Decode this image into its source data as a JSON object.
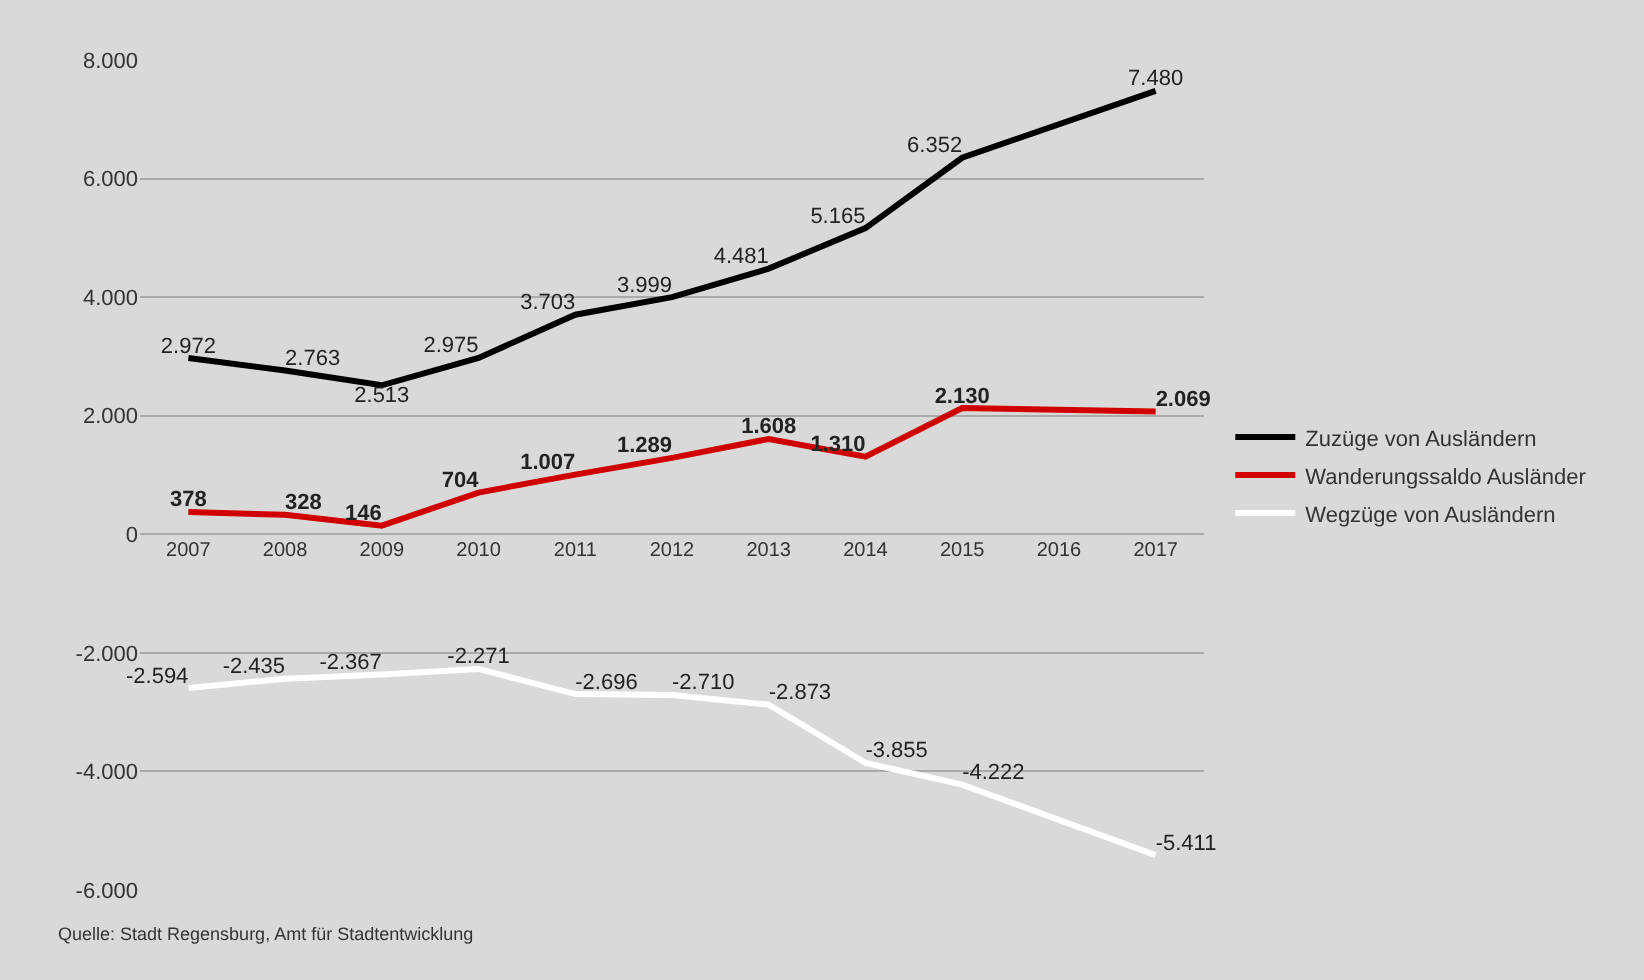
{
  "chart_data": {
    "type": "line",
    "categories": [
      "2007",
      "2008",
      "2009",
      "2010",
      "2011",
      "2012",
      "2013",
      "2014",
      "2015",
      "2016",
      "2017"
    ],
    "series": [
      {
        "name": "Zuzüge von Ausländern",
        "color": "#000000",
        "values": [
          2972,
          2763,
          2513,
          2975,
          3703,
          3999,
          4481,
          5165,
          6352,
          null,
          7480
        ],
        "value_labels": [
          "2.972",
          "2.763",
          "2.513",
          "2.975",
          "3.703",
          "3.999",
          "4.481",
          "5.165",
          "6.352",
          null,
          "7.480"
        ]
      },
      {
        "name": "Wanderungssaldo Ausländer",
        "color": "#d00000",
        "values": [
          378,
          328,
          146,
          704,
          1007,
          1289,
          1608,
          1310,
          2130,
          null,
          2069
        ],
        "value_labels": [
          "378",
          "328",
          "146",
          "704",
          "1.007",
          "1.289",
          "1.608",
          "1.310",
          "2.130",
          null,
          "2.069"
        ]
      },
      {
        "name": "Wegzüge von Ausländern",
        "color": "#ffffff",
        "values": [
          -2594,
          -2435,
          -2367,
          -2271,
          -2696,
          -2710,
          -2873,
          -3855,
          -4222,
          null,
          -5411
        ],
        "value_labels": [
          "-2.594",
          "-2.435",
          "-2.367",
          "-2.271",
          "-2.696",
          "-2.710",
          "-2.873",
          "-3.855",
          "-4.222",
          null,
          "-5.411"
        ]
      }
    ],
    "ylim": [
      -6000,
      8000
    ],
    "yticks": [
      {
        "value": -6000,
        "label": "-6.000"
      },
      {
        "value": -4000,
        "label": "-4.000"
      },
      {
        "value": -2000,
        "label": "-2.000"
      },
      0,
      {
        "value": 2000,
        "label": "2.000"
      },
      {
        "value": 4000,
        "label": "4.000"
      },
      {
        "value": 6000,
        "label": "6.000"
      },
      {
        "value": 8000,
        "label": "8.000"
      }
    ],
    "grid": "y",
    "legend": "right",
    "marker": "none",
    "line_style": "solid",
    "annotations": [
      "Quelle: Stadt Regensburg, Amt für Stadtentwicklung"
    ]
  }
}
